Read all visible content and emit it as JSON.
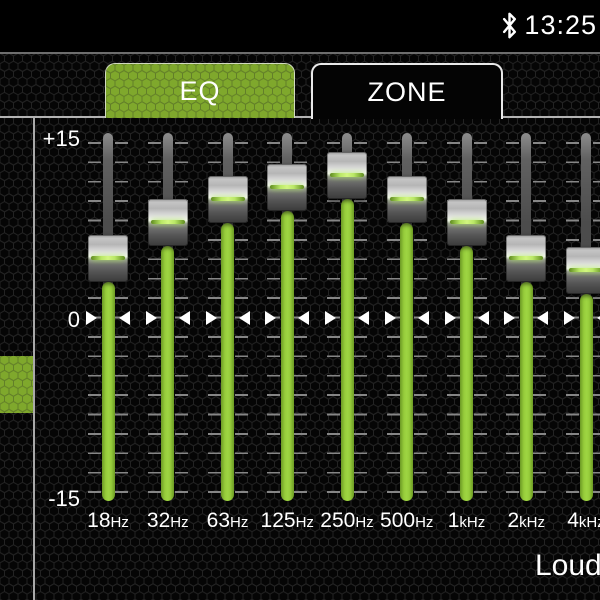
{
  "status_bar": {
    "time": "13:25",
    "bluetooth_icon": "bluetooth"
  },
  "tabs": [
    {
      "label": "EQ",
      "active": true
    },
    {
      "label": "ZONE",
      "active": false
    }
  ],
  "eq": {
    "scale": {
      "max_label": "+15",
      "zero_label": "0",
      "min_label": "-15",
      "max_db": 15,
      "min_db": -15
    },
    "sliders": [
      {
        "freq": "18",
        "unit": "Hz",
        "value_db": 5
      },
      {
        "freq": "32",
        "unit": "Hz",
        "value_db": 8
      },
      {
        "freq": "63",
        "unit": "Hz",
        "value_db": 10
      },
      {
        "freq": "125",
        "unit": "Hz",
        "value_db": 11
      },
      {
        "freq": "250",
        "unit": "Hz",
        "value_db": 12
      },
      {
        "freq": "500",
        "unit": "Hz",
        "value_db": 10
      },
      {
        "freq": "1",
        "unit": "kHz",
        "value_db": 8
      },
      {
        "freq": "2",
        "unit": "kHz",
        "value_db": 5
      },
      {
        "freq": "4",
        "unit": "kHz",
        "value_db": 4
      }
    ]
  },
  "footer": {
    "loudness_label": "Loudness"
  },
  "colors": {
    "accent_green": "#8fc63a",
    "tab_green": "#7fa82c",
    "background": "#050505",
    "status_bar_bg": "#000000",
    "separator": "#b2b2b2",
    "text": "#ffffff"
  }
}
